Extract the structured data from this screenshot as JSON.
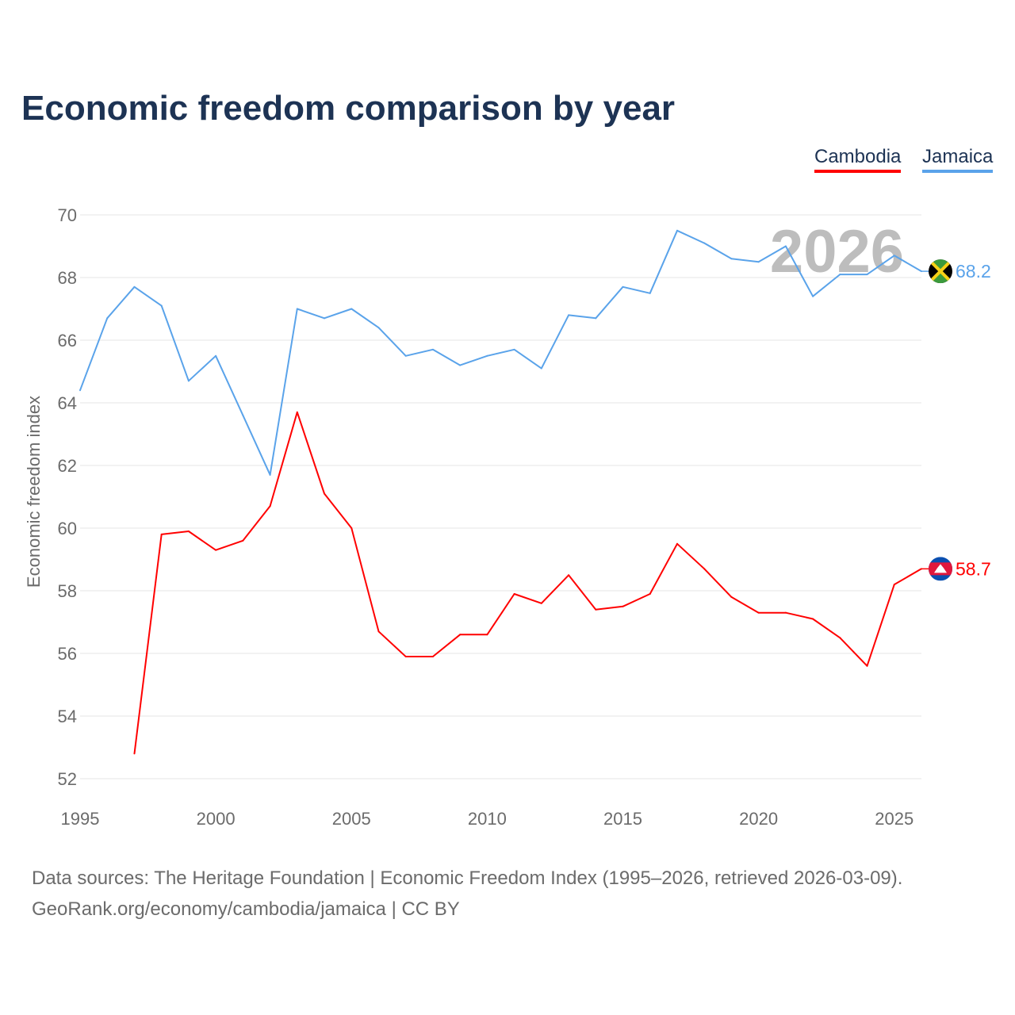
{
  "chart_data": {
    "type": "line",
    "title": "Economic freedom comparison by year",
    "xlabel": "",
    "ylabel": "Economic freedom index",
    "xlim": [
      1995,
      2026
    ],
    "ylim": [
      52,
      70
    ],
    "xticks": [
      1995,
      2000,
      2005,
      2010,
      2015,
      2020,
      2025
    ],
    "yticks": [
      52,
      54,
      56,
      58,
      60,
      62,
      64,
      66,
      68,
      70
    ],
    "grid": true,
    "legend_position": "top-right",
    "year_watermark": "2026",
    "series": [
      {
        "name": "Cambodia",
        "color": "#ff0000",
        "flag": "cambodia-flag",
        "end_label": "58.7",
        "x": [
          1997,
          1998,
          1999,
          2000,
          2001,
          2002,
          2003,
          2004,
          2005,
          2006,
          2007,
          2008,
          2009,
          2010,
          2011,
          2012,
          2013,
          2014,
          2015,
          2016,
          2017,
          2018,
          2019,
          2020,
          2021,
          2022,
          2023,
          2024,
          2025,
          2026
        ],
        "values": [
          52.8,
          59.8,
          59.9,
          59.3,
          59.6,
          60.7,
          63.7,
          61.1,
          60.0,
          56.7,
          55.9,
          55.9,
          56.6,
          56.6,
          57.9,
          57.6,
          58.5,
          57.4,
          57.5,
          57.9,
          59.5,
          58.7,
          57.8,
          57.3,
          57.3,
          57.1,
          56.5,
          55.6,
          58.2,
          58.7
        ]
      },
      {
        "name": "Jamaica",
        "color": "#5aa3ea",
        "flag": "jamaica-flag",
        "end_label": "68.2",
        "x": [
          1995,
          1996,
          1997,
          1998,
          1999,
          2000,
          2001,
          2002,
          2003,
          2004,
          2005,
          2006,
          2007,
          2008,
          2009,
          2010,
          2011,
          2012,
          2013,
          2014,
          2015,
          2016,
          2017,
          2018,
          2019,
          2020,
          2021,
          2022,
          2023,
          2024,
          2025,
          2026
        ],
        "values": [
          64.4,
          66.7,
          67.7,
          67.1,
          64.7,
          65.5,
          63.6,
          61.7,
          67.0,
          66.7,
          67.0,
          66.4,
          65.5,
          65.7,
          65.2,
          65.5,
          65.7,
          65.1,
          66.8,
          66.7,
          67.7,
          67.5,
          69.5,
          69.1,
          68.6,
          68.5,
          69.0,
          67.4,
          68.1,
          68.1,
          68.7,
          68.2
        ]
      }
    ]
  },
  "footer": {
    "line1": "Data sources: The Heritage Foundation | Economic Freedom Index (1995–2026, retrieved 2026-03-09).",
    "line2": "GeoRank.org/economy/cambodia/jamaica | CC BY"
  }
}
